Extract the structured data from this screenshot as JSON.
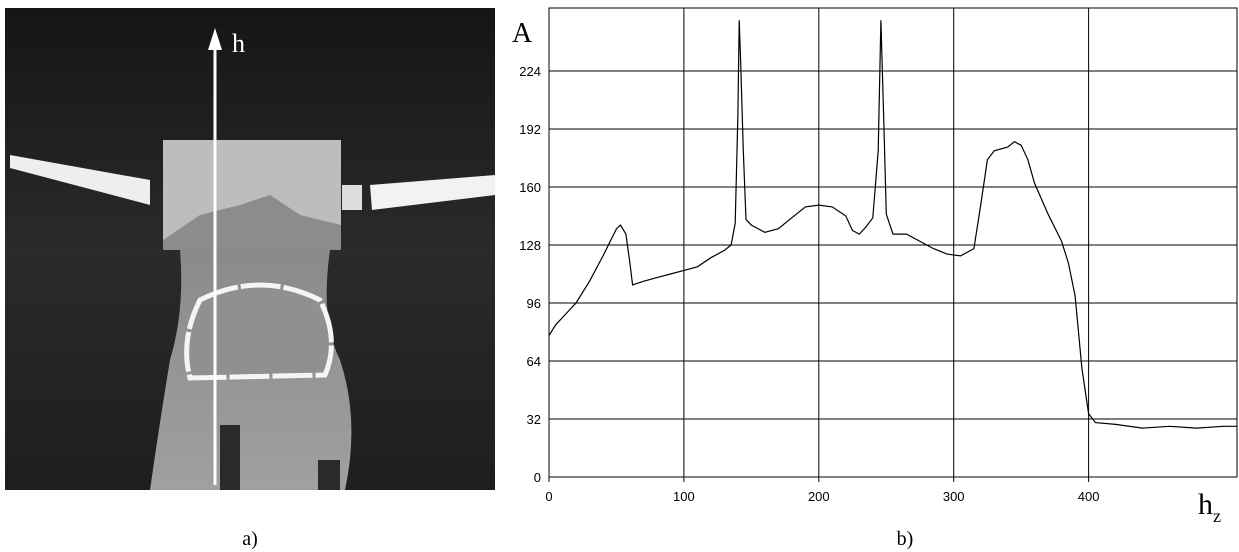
{
  "chart_data": {
    "type": "line",
    "y_label": "A",
    "x_label": "h",
    "x_label_sub": "z",
    "image_label": "h",
    "panel_labels": [
      "a)",
      "b)"
    ],
    "x": [
      0,
      5,
      10,
      20,
      30,
      40,
      50,
      53,
      57,
      60,
      62,
      70,
      80,
      90,
      100,
      110,
      120,
      130,
      135,
      138,
      140,
      141,
      142,
      144,
      146,
      150,
      160,
      170,
      180,
      190,
      200,
      210,
      220,
      225,
      230,
      235,
      240,
      244,
      246,
      248,
      250,
      255,
      265,
      275,
      285,
      295,
      305,
      315,
      320,
      325,
      330,
      340,
      345,
      350,
      355,
      360,
      370,
      380,
      385,
      390,
      395,
      400,
      405,
      420,
      440,
      460,
      480,
      500,
      510
    ],
    "values": [
      78,
      84,
      88,
      96,
      108,
      122,
      137,
      139,
      134,
      118,
      106,
      108,
      110,
      112,
      114,
      116,
      121,
      125,
      128,
      140,
      200,
      252,
      230,
      180,
      142,
      139,
      135,
      137,
      143,
      149,
      150,
      149,
      144,
      136,
      134,
      138,
      143,
      180,
      252,
      200,
      145,
      134,
      134,
      130,
      126,
      123,
      122,
      126,
      150,
      175,
      180,
      182,
      185,
      183,
      175,
      162,
      145,
      130,
      118,
      100,
      60,
      35,
      30,
      29,
      27,
      28,
      27,
      28,
      28
    ],
    "color": "#000000",
    "xlim": [
      0,
      510
    ],
    "ylim": [
      0,
      256
    ],
    "xticks": [
      0,
      100,
      200,
      300,
      400
    ],
    "yticks": [
      0,
      32,
      64,
      96,
      128,
      160,
      192,
      224
    ],
    "grid": true
  }
}
